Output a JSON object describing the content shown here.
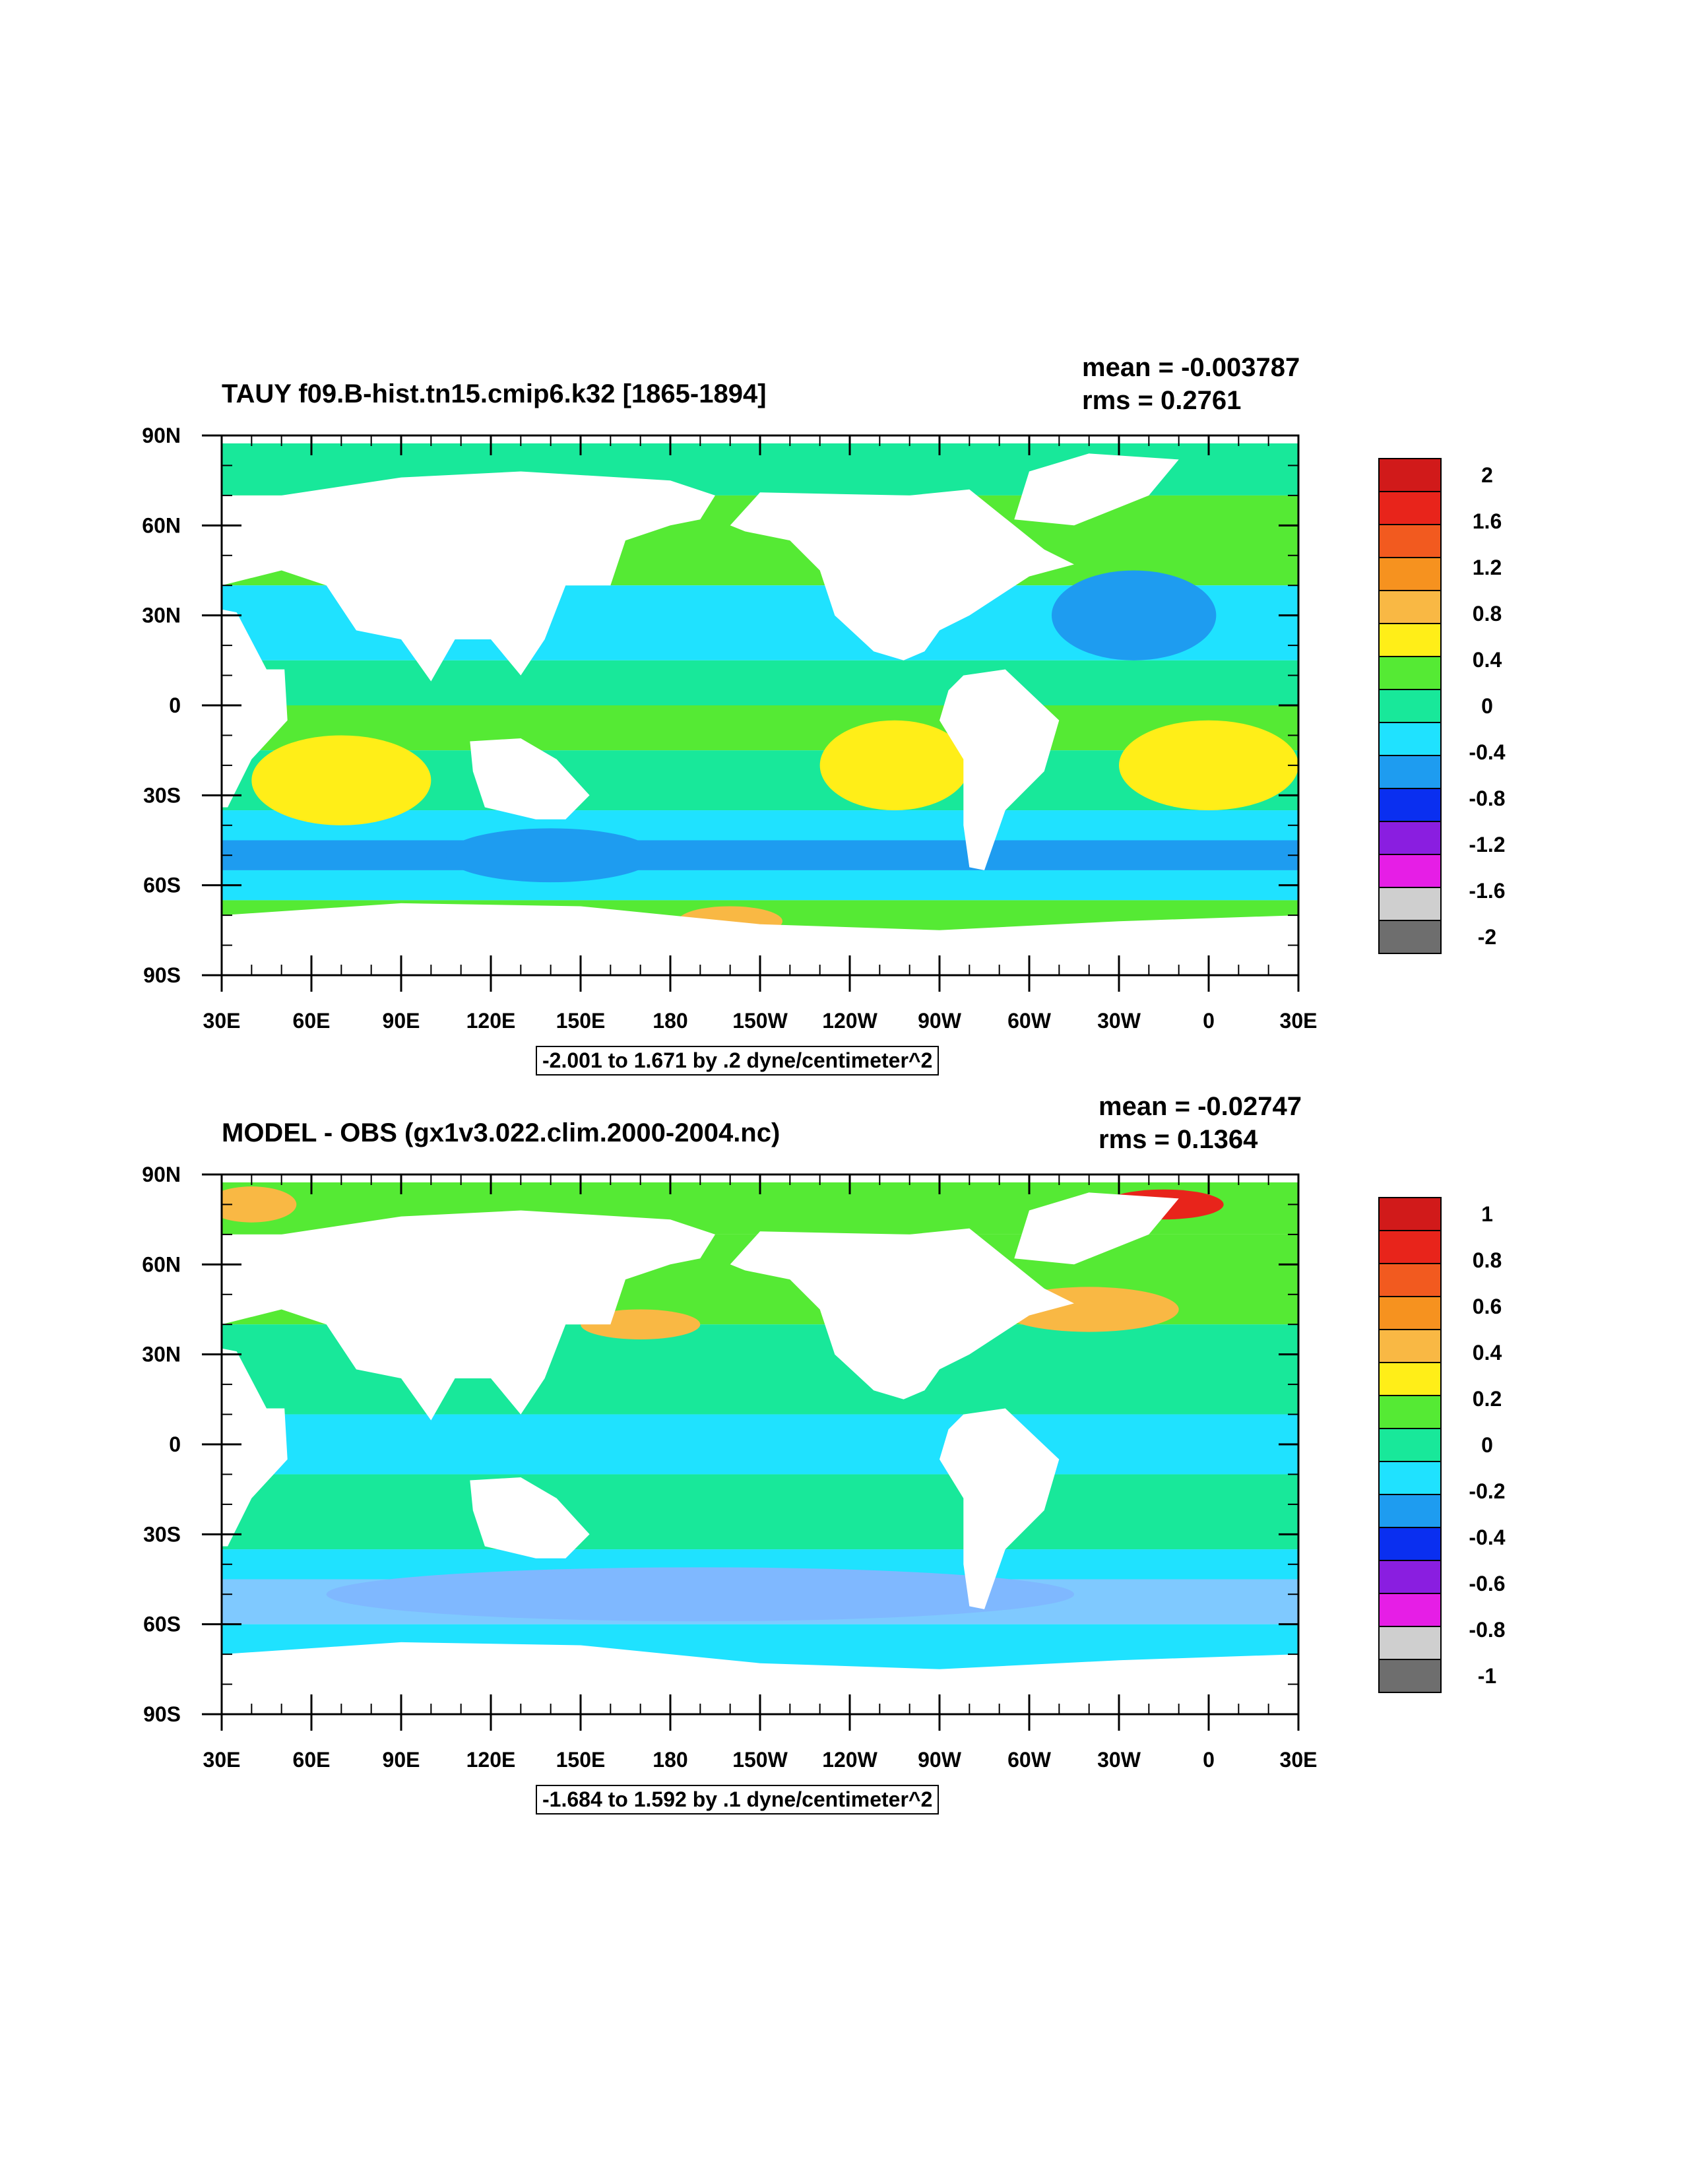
{
  "panels": [
    {
      "title": "TAUY f09.B-hist.tn15.cmip6.k32 [1865-1894]",
      "mean": "mean = -0.003787",
      "rms": "rms = 0.2761",
      "range_label": "-2.001 to 1.671 by .2 dyne/centimeter^2",
      "colorbar_labels": [
        "2",
        "1.6",
        "1.2",
        "0.8",
        "0.4",
        "0",
        "-0.4",
        "-0.8",
        "-1.2",
        "-1.6",
        "-2"
      ]
    },
    {
      "title": "MODEL - OBS (gx1v3.022.clim.2000-2004.nc)",
      "mean": "mean = -0.02747",
      "rms": "rms = 0.1364",
      "range_label": "-1.684 to 1.592 by .1 dyne/centimeter^2",
      "colorbar_labels": [
        "1",
        "0.8",
        "0.6",
        "0.4",
        "0.2",
        "0",
        "-0.2",
        "-0.4",
        "-0.6",
        "-0.8",
        "-1"
      ]
    }
  ],
  "lat_labels": [
    "90N",
    "60N",
    "30N",
    "0",
    "30S",
    "60S",
    "90S"
  ],
  "lon_labels": [
    "30E",
    "60E",
    "90E",
    "120E",
    "150E",
    "180",
    "150W",
    "120W",
    "90W",
    "60W",
    "30W",
    "0",
    "30E"
  ],
  "colorbar_colors": [
    "#d11a1a",
    "#e8241b",
    "#f25a1f",
    "#f6921f",
    "#f9b844",
    "#ffee18",
    "#55ea34",
    "#18e89a",
    "#1fe2ff",
    "#1e9cf0",
    "#0a2ff0",
    "#8a1ee0",
    "#e61ee6",
    "#cfcfcf",
    "#6e6e6e"
  ]
}
